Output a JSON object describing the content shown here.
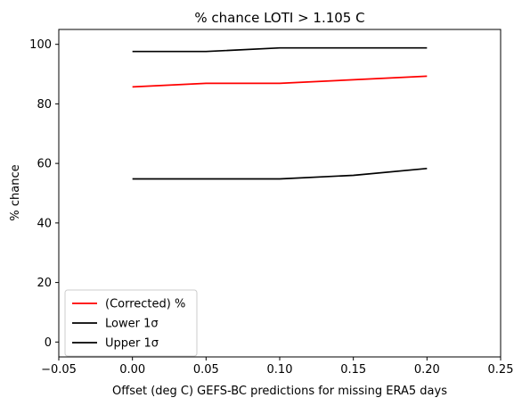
{
  "chart_data": {
    "type": "line",
    "title": "% chance LOTI > 1.105 C",
    "xlabel": "Offset (deg C) GEFS-BC predictions for missing ERA5 days",
    "ylabel": "% chance",
    "xlim": [
      -0.05,
      0.25
    ],
    "ylim": [
      -5,
      105
    ],
    "xticks": [
      -0.05,
      0.0,
      0.05,
      0.1,
      0.15,
      0.2,
      0.25
    ],
    "xtick_labels": [
      "−0.05",
      "0.00",
      "0.05",
      "0.10",
      "0.15",
      "0.20",
      "0.25"
    ],
    "yticks": [
      0,
      20,
      40,
      60,
      80,
      100
    ],
    "ytick_labels": [
      "0",
      "20",
      "40",
      "60",
      "80",
      "100"
    ],
    "grid": false,
    "legend_position": "bottom-left",
    "x": [
      0.0,
      0.05,
      0.1,
      0.15,
      0.2
    ],
    "series": [
      {
        "name": "(Corrected) %",
        "color": "#ff0000",
        "values": [
          85.7,
          86.9,
          86.9,
          88.1,
          89.3
        ]
      },
      {
        "name": "Lower 1σ",
        "color": "#000000",
        "values": [
          54.8,
          54.8,
          54.8,
          56.0,
          58.3
        ]
      },
      {
        "name": "Upper 1σ",
        "color": "#000000",
        "values": [
          97.6,
          97.6,
          98.8,
          98.8,
          98.8
        ]
      }
    ]
  }
}
